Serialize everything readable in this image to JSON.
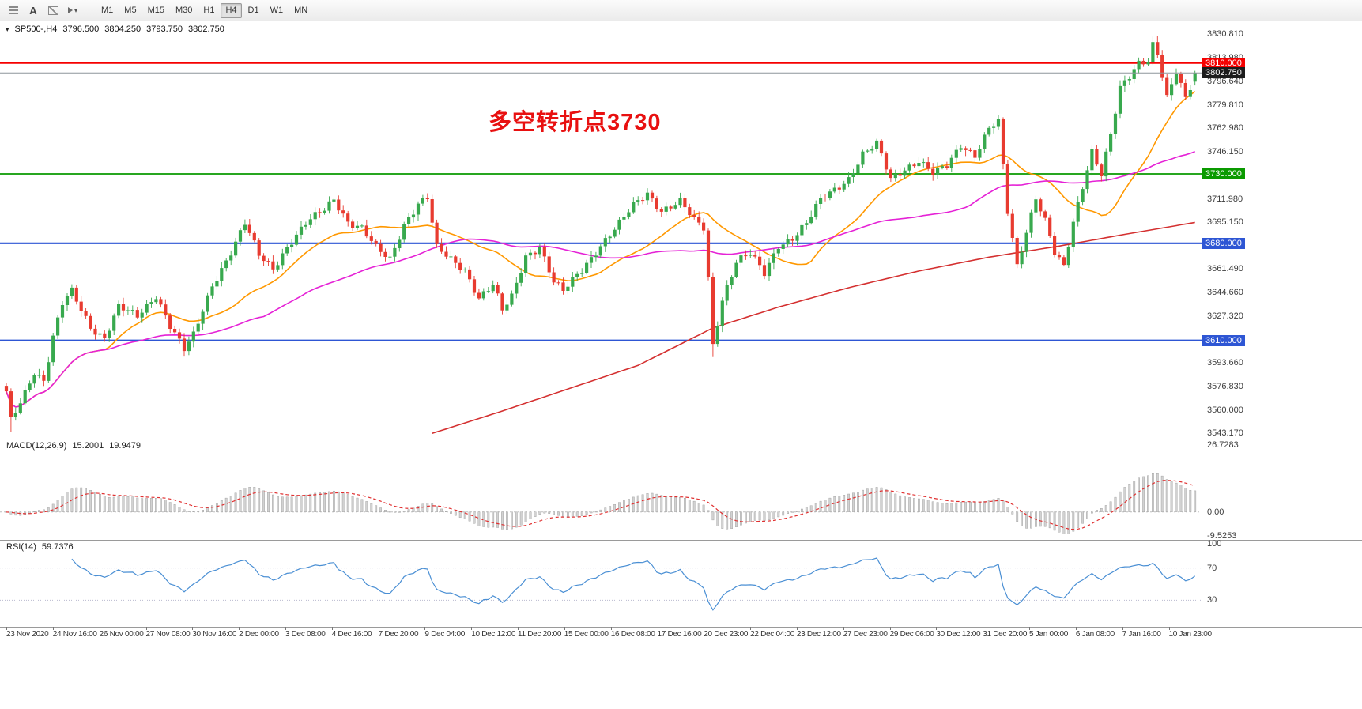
{
  "toolbar": {
    "timeframes": [
      "M1",
      "M5",
      "M15",
      "M30",
      "H1",
      "H4",
      "D1",
      "W1",
      "MN"
    ],
    "active_timeframe": "H4",
    "icons": [
      "chart-list-icon",
      "text-tool-icon",
      "template-icon",
      "cursor-tool-icon"
    ],
    "glyphs": {
      "text_tool": "A",
      "caret": "▾"
    }
  },
  "chart_header": {
    "dropdown_icon": "▾",
    "symbol_period": "SP500-,H4",
    "open": "3796.500",
    "high": "3804.250",
    "low": "3793.750",
    "close": "3802.750"
  },
  "annotation": {
    "text": "多空转折点3730",
    "color": "#e81010"
  },
  "price_axis": {
    "ticks": [
      "3830.810",
      "3813.980",
      "3796.640",
      "3779.810",
      "3762.980",
      "3746.150",
      "3711.980",
      "3695.150",
      "3661.490",
      "3644.660",
      "3627.320",
      "3593.660",
      "3576.830",
      "3560.000",
      "3543.170"
    ],
    "boxes": [
      {
        "text": "3810.000",
        "value": 3810.0,
        "color": "#f50000"
      },
      {
        "text": "3802.750",
        "value": 3802.75,
        "color": "#1c1c1c"
      },
      {
        "text": "3730.000",
        "value": 3730.0,
        "color": "#0a9a00"
      },
      {
        "text": "3680.000",
        "value": 3680.0,
        "color": "#2e56d4"
      },
      {
        "text": "3610.000",
        "value": 3610.0,
        "color": "#2e56d4"
      }
    ]
  },
  "macd_panel": {
    "name": "MACD(12,26,9)",
    "main_value": "15.2001",
    "signal_value": "19.9479",
    "axis_ticks": [
      "26.7283",
      "0.00",
      "-9.5253"
    ]
  },
  "rsi_panel": {
    "name": "RSI(14)",
    "value": "59.7376",
    "axis_ticks": [
      "100",
      "70",
      "30"
    ]
  },
  "time_axis": [
    "23 Nov 2020",
    "24 Nov 16:00",
    "26 Nov 00:00",
    "27 Nov 08:00",
    "30 Nov 16:00",
    "2 Dec 00:00",
    "3 Dec 08:00",
    "4 Dec 16:00",
    "7 Dec 20:00",
    "9 Dec 04:00",
    "10 Dec 12:00",
    "11 Dec 20:00",
    "15 Dec 00:00",
    "16 Dec 08:00",
    "17 Dec 16:00",
    "20 Dec 23:00",
    "22 Dec 04:00",
    "23 Dec 12:00",
    "27 Dec 23:00",
    "29 Dec 06:00",
    "30 Dec 12:00",
    "31 Dec 20:00",
    "5 Jan 00:00",
    "6 Jan 08:00",
    "7 Jan 16:00",
    "10 Jan 23:00"
  ],
  "chart_data": {
    "type": "candlestick",
    "symbol": "SP500-",
    "timeframe": "H4",
    "bars": 255,
    "price_min_axis": 3543.17,
    "price_max_axis": 3830.81,
    "last_bar": {
      "open": 3796.5,
      "high": 3804.25,
      "low": 3793.75,
      "close": 3802.75
    },
    "up_color": "#38a94e",
    "down_color": "#e83b30",
    "price_path": [
      [
        0,
        3572
      ],
      [
        1,
        3552
      ],
      [
        3,
        3566
      ],
      [
        6,
        3588
      ],
      [
        8,
        3581
      ],
      [
        10,
        3612
      ],
      [
        12,
        3636
      ],
      [
        14,
        3645
      ],
      [
        18,
        3620
      ],
      [
        21,
        3612
      ],
      [
        24,
        3634
      ],
      [
        28,
        3627
      ],
      [
        32,
        3643
      ],
      [
        35,
        3621
      ],
      [
        38,
        3603
      ],
      [
        40,
        3613
      ],
      [
        44,
        3650
      ],
      [
        48,
        3674
      ],
      [
        51,
        3694
      ],
      [
        54,
        3671
      ],
      [
        57,
        3662
      ],
      [
        60,
        3678
      ],
      [
        64,
        3694
      ],
      [
        68,
        3704
      ],
      [
        70,
        3712
      ],
      [
        73,
        3696
      ],
      [
        76,
        3691
      ],
      [
        79,
        3676
      ],
      [
        82,
        3668
      ],
      [
        85,
        3694
      ],
      [
        88,
        3709
      ],
      [
        90,
        3713
      ],
      [
        92,
        3676
      ],
      [
        95,
        3668
      ],
      [
        98,
        3661
      ],
      [
        101,
        3641
      ],
      [
        104,
        3650
      ],
      [
        106,
        3631
      ],
      [
        108,
        3641
      ],
      [
        111,
        3671
      ],
      [
        114,
        3678
      ],
      [
        117,
        3652
      ],
      [
        119,
        3645
      ],
      [
        123,
        3661
      ],
      [
        127,
        3679
      ],
      [
        131,
        3694
      ],
      [
        134,
        3707
      ],
      [
        137,
        3716
      ],
      [
        140,
        3704
      ],
      [
        144,
        3710
      ],
      [
        147,
        3696
      ],
      [
        149,
        3691
      ],
      [
        150,
        3655
      ],
      [
        151,
        3607
      ],
      [
        153,
        3640
      ],
      [
        156,
        3667
      ],
      [
        159,
        3672
      ],
      [
        162,
        3658
      ],
      [
        165,
        3679
      ],
      [
        168,
        3684
      ],
      [
        171,
        3694
      ],
      [
        174,
        3711
      ],
      [
        177,
        3719
      ],
      [
        180,
        3727
      ],
      [
        183,
        3744
      ],
      [
        186,
        3751
      ],
      [
        189,
        3726
      ],
      [
        192,
        3734
      ],
      [
        195,
        3740
      ],
      [
        198,
        3730
      ],
      [
        201,
        3735
      ],
      [
        204,
        3751
      ],
      [
        207,
        3744
      ],
      [
        210,
        3763
      ],
      [
        212,
        3767
      ],
      [
        214,
        3702
      ],
      [
        216,
        3663
      ],
      [
        218,
        3689
      ],
      [
        220,
        3714
      ],
      [
        222,
        3697
      ],
      [
        224,
        3673
      ],
      [
        226,
        3662
      ],
      [
        228,
        3694
      ],
      [
        230,
        3721
      ],
      [
        232,
        3747
      ],
      [
        234,
        3731
      ],
      [
        236,
        3759
      ],
      [
        238,
        3791
      ],
      [
        240,
        3799
      ],
      [
        242,
        3809
      ],
      [
        244,
        3812
      ],
      [
        245,
        3824
      ],
      [
        246,
        3818
      ],
      [
        248,
        3786
      ],
      [
        250,
        3804
      ],
      [
        252,
        3783
      ],
      [
        253,
        3791
      ],
      [
        254,
        3802.75
      ]
    ],
    "horizontal_levels": [
      {
        "price": 3810.0,
        "color": "#f50000",
        "width": 2.6
      },
      {
        "price": 3730.0,
        "color": "#0a9a00",
        "width": 1.8
      },
      {
        "price": 3680.0,
        "color": "#2e56d4",
        "width": 2.2
      },
      {
        "price": 3610.0,
        "color": "#2e56d4",
        "width": 2.2
      }
    ],
    "current_price_line": {
      "price": 3802.75,
      "color": "#8e959c"
    },
    "moving_averages": [
      {
        "name": "fast",
        "type": "sma",
        "period": 22,
        "color": "#ff9800"
      },
      {
        "name": "mid",
        "type": "sma",
        "period": 56,
        "color": "#e522d6"
      },
      {
        "name": "slow",
        "type": "path",
        "color": "#d43030",
        "path": [
          [
            91,
            3543
          ],
          [
            105,
            3558
          ],
          [
            120,
            3575
          ],
          [
            135,
            3592
          ],
          [
            151,
            3619
          ],
          [
            165,
            3634
          ],
          [
            180,
            3648
          ],
          [
            195,
            3660
          ],
          [
            210,
            3670
          ],
          [
            225,
            3678
          ],
          [
            240,
            3687
          ],
          [
            254,
            3695
          ]
        ]
      }
    ],
    "macd": {
      "fast": 12,
      "slow": 26,
      "signal": 9,
      "axis_max": 26.7283,
      "axis_min": -9.5253,
      "hist_color": "#d2d2d2",
      "hist_stroke": "#9a9a9a",
      "signal_color": "#e03030"
    },
    "rsi": {
      "period": 14,
      "color": "#4a8fd4",
      "levels": [
        70,
        30
      ]
    }
  }
}
